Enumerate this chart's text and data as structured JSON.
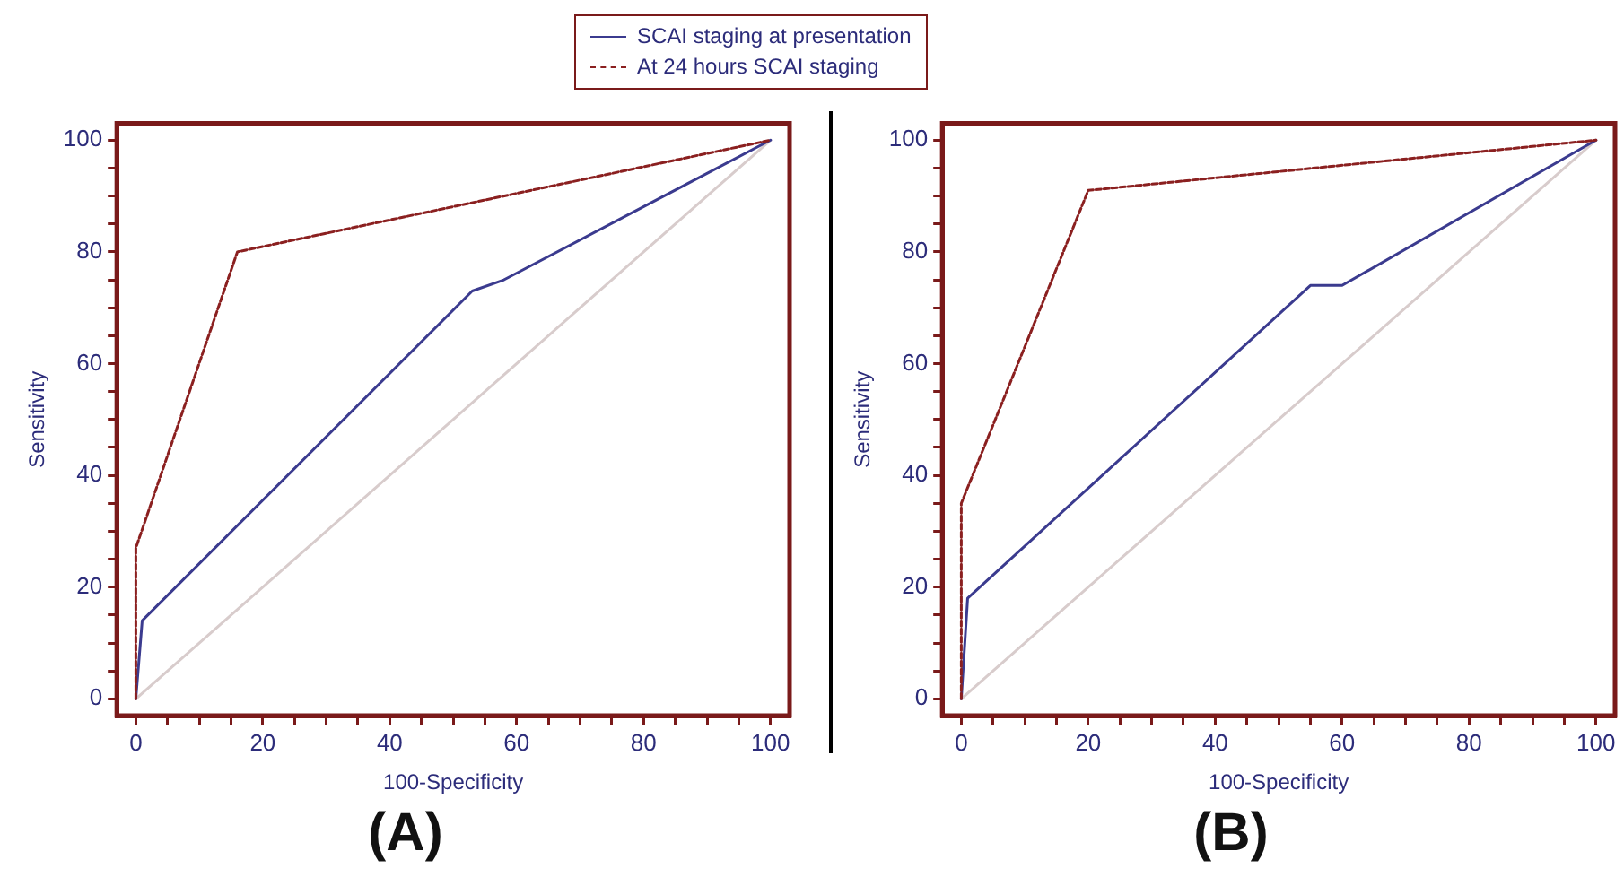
{
  "chart_data": [
    {
      "type": "line",
      "title": "(A)",
      "xlabel": "100-Specificity",
      "ylabel": "Sensitivity",
      "legend": "top",
      "marker": "none",
      "xlim": [
        -3,
        103
      ],
      "ylim": [
        -3,
        103
      ],
      "xticks": [
        0,
        {
          "value": 5,
          "label": null
        },
        {
          "value": 10,
          "label": null
        },
        {
          "value": 15,
          "label": null
        },
        20,
        {
          "value": 25,
          "label": null
        },
        {
          "value": 30,
          "label": null
        },
        {
          "value": 35,
          "label": null
        },
        40,
        {
          "value": 45,
          "label": null
        },
        {
          "value": 50,
          "label": null
        },
        {
          "value": 55,
          "label": null
        },
        60,
        {
          "value": 65,
          "label": null
        },
        {
          "value": 70,
          "label": null
        },
        {
          "value": 75,
          "label": null
        },
        80,
        {
          "value": 85,
          "label": null
        },
        {
          "value": 90,
          "label": null
        },
        {
          "value": 95,
          "label": null
        },
        100
      ],
      "yticks": [
        0,
        {
          "value": 5,
          "label": null
        },
        {
          "value": 10,
          "label": null
        },
        {
          "value": 15,
          "label": null
        },
        20,
        {
          "value": 25,
          "label": null
        },
        {
          "value": 30,
          "label": null
        },
        {
          "value": 35,
          "label": null
        },
        40,
        {
          "value": 45,
          "label": null
        },
        {
          "value": 50,
          "label": null
        },
        {
          "value": 55,
          "label": null
        },
        60,
        {
          "value": 65,
          "label": null
        },
        {
          "value": 70,
          "label": null
        },
        {
          "value": 75,
          "label": null
        },
        80,
        {
          "value": 85,
          "label": null
        },
        {
          "value": 90,
          "label": null
        },
        {
          "value": 95,
          "label": null
        },
        100
      ],
      "series": [
        {
          "color": "#d8cccc",
          "line_style": "solid",
          "x": [
            0,
            100
          ],
          "values": [
            0,
            100
          ]
        },
        {
          "name": "SCAI staging at presentation",
          "color": "#3b3b8f",
          "line_style": "solid",
          "x": [
            0,
            1,
            53,
            58,
            100
          ],
          "values": [
            0,
            14,
            73,
            75,
            100
          ]
        },
        {
          "name": "At 24 hours SCAI staging",
          "color": "#8b2020",
          "line_style": "dashed",
          "x": [
            0,
            0,
            16,
            100
          ],
          "values": [
            0,
            27,
            80,
            100
          ]
        }
      ]
    },
    {
      "type": "line",
      "title": "(B)",
      "xlabel": "100-Specificity",
      "ylabel": "Sensitivity",
      "marker": "none",
      "xlim": [
        -3,
        103
      ],
      "ylim": [
        -3,
        103
      ],
      "xticks": [
        0,
        {
          "value": 5,
          "label": null
        },
        {
          "value": 10,
          "label": null
        },
        {
          "value": 15,
          "label": null
        },
        20,
        {
          "value": 25,
          "label": null
        },
        {
          "value": 30,
          "label": null
        },
        {
          "value": 35,
          "label": null
        },
        40,
        {
          "value": 45,
          "label": null
        },
        {
          "value": 50,
          "label": null
        },
        {
          "value": 55,
          "label": null
        },
        60,
        {
          "value": 65,
          "label": null
        },
        {
          "value": 70,
          "label": null
        },
        {
          "value": 75,
          "label": null
        },
        80,
        {
          "value": 85,
          "label": null
        },
        {
          "value": 90,
          "label": null
        },
        {
          "value": 95,
          "label": null
        },
        100
      ],
      "yticks": [
        0,
        {
          "value": 5,
          "label": null
        },
        {
          "value": 10,
          "label": null
        },
        {
          "value": 15,
          "label": null
        },
        20,
        {
          "value": 25,
          "label": null
        },
        {
          "value": 30,
          "label": null
        },
        {
          "value": 35,
          "label": null
        },
        40,
        {
          "value": 45,
          "label": null
        },
        {
          "value": 50,
          "label": null
        },
        {
          "value": 55,
          "label": null
        },
        60,
        {
          "value": 65,
          "label": null
        },
        {
          "value": 70,
          "label": null
        },
        {
          "value": 75,
          "label": null
        },
        80,
        {
          "value": 85,
          "label": null
        },
        {
          "value": 90,
          "label": null
        },
        {
          "value": 95,
          "label": null
        },
        100
      ],
      "series": [
        {
          "color": "#d8cccc",
          "line_style": "solid",
          "x": [
            0,
            100
          ],
          "values": [
            0,
            100
          ]
        },
        {
          "color": "#3b3b8f",
          "line_style": "solid",
          "x": [
            0,
            1,
            55,
            60,
            100
          ],
          "values": [
            0,
            18,
            74,
            74,
            100
          ]
        },
        {
          "color": "#8b2020",
          "line_style": "dashed",
          "x": [
            0,
            0,
            20,
            100
          ],
          "values": [
            0,
            35,
            91,
            100
          ]
        }
      ]
    }
  ]
}
